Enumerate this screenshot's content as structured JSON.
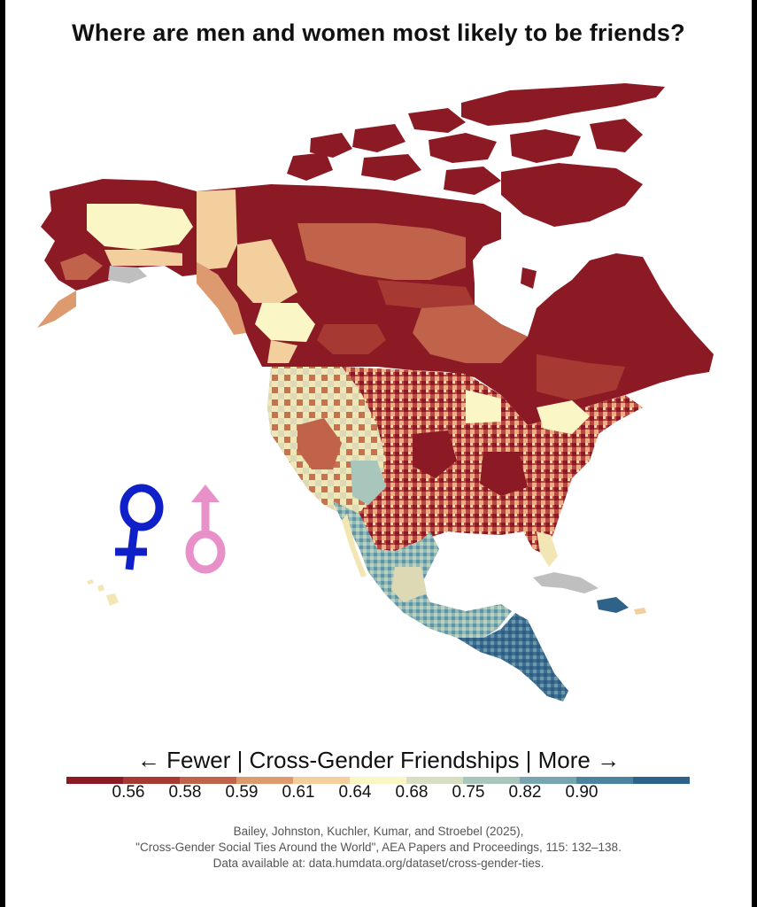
{
  "title": "Where are men and women most likely to be friends?",
  "legend": {
    "title": "← Fewer | Cross-Gender Friendships | More →",
    "ticks": [
      "0.56",
      "0.58",
      "0.59",
      "0.61",
      "0.64",
      "0.68",
      "0.75",
      "0.82",
      "0.90"
    ],
    "colors": [
      "#8b1a24",
      "#a63a33",
      "#c0634a",
      "#dc9a6e",
      "#f2cf9c",
      "#fbf6c6",
      "#d6dfc2",
      "#a9c6bd",
      "#77a6b0",
      "#4c84a0",
      "#2e6289"
    ]
  },
  "citation": {
    "line1": "Bailey, Johnston, Kuchler, Kumar, and Stroebel (2025),",
    "line2": "\"Cross-Gender Social Ties Around the World\", AEA Papers and Proceedings, 115: 132–138.",
    "line3": "Data available at: data.humdata.org/dataset/cross-gender-ties."
  },
  "symbols": {
    "female_color": "#1020c8",
    "male_color": "#e890c8"
  }
}
